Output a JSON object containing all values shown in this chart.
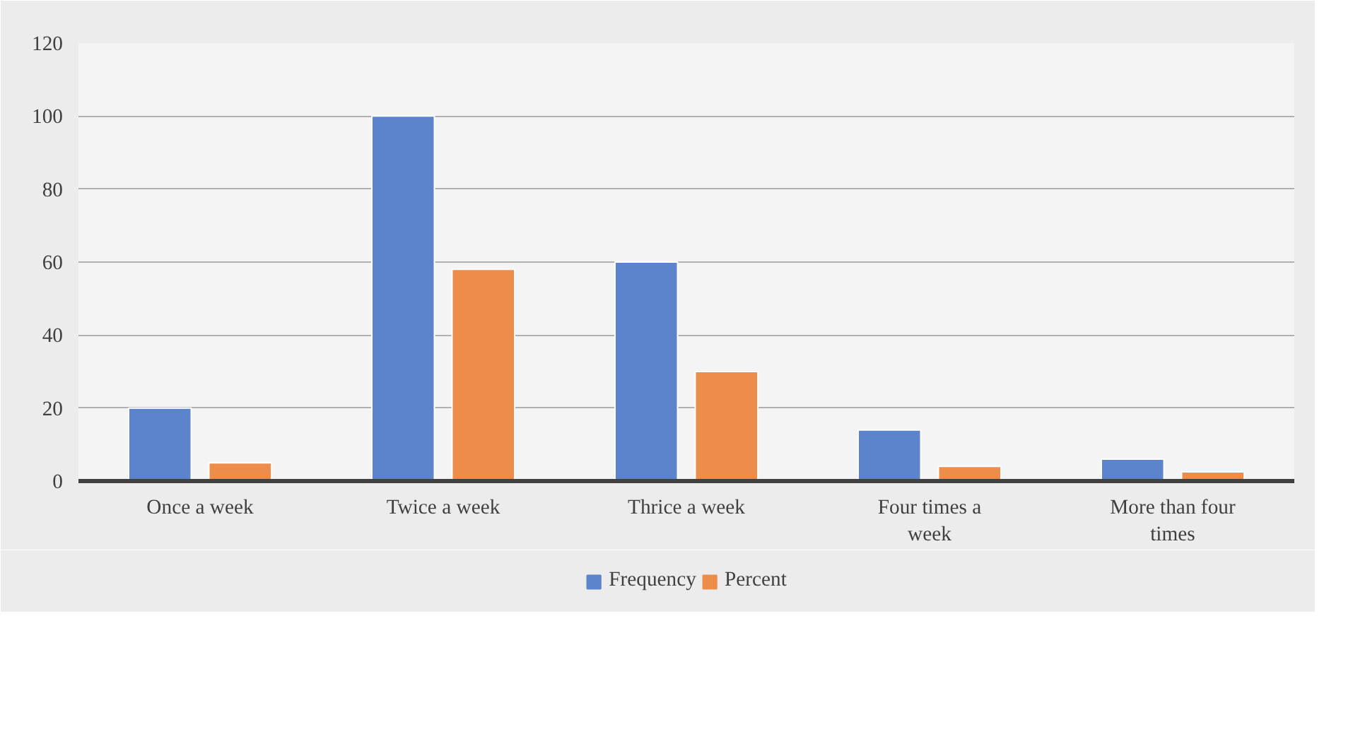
{
  "chart_data": {
    "type": "bar",
    "categories": [
      "Once a week",
      "Twice a week",
      "Thrice a week",
      "Four times a week",
      "More than four times"
    ],
    "series": [
      {
        "name": "Frequency",
        "color": "#5b84cc",
        "values": [
          20,
          100,
          60,
          14,
          6
        ]
      },
      {
        "name": "Percent",
        "color": "#ee8c4a",
        "values": [
          5,
          58,
          30,
          4,
          2.5
        ]
      }
    ],
    "ylim": [
      0,
      120
    ],
    "yticks": [
      0,
      20,
      40,
      60,
      80,
      100,
      120
    ],
    "grid": "y",
    "legend": "bottom"
  }
}
